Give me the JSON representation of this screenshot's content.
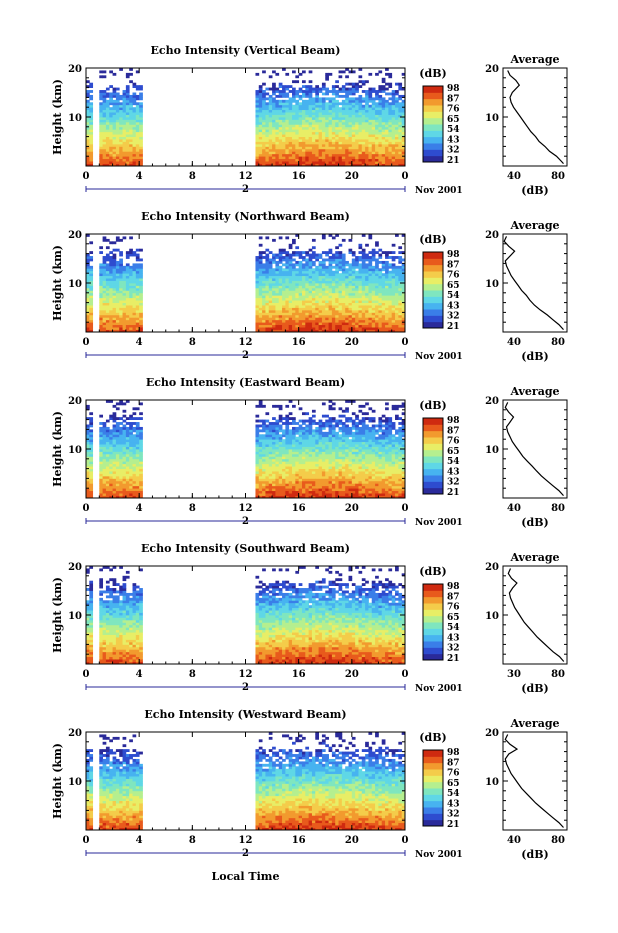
{
  "colors": {
    "colormap": [
      "#2a2a9a",
      "#2e4ccf",
      "#3a7ee8",
      "#47b3f0",
      "#5fd7e6",
      "#7fe6bf",
      "#b5ef8f",
      "#e8ee66",
      "#f4cc4a",
      "#f29a2e",
      "#e85a1c",
      "#cf2a10"
    ],
    "axis": "#000000",
    "time_marker": "#2a2a9a"
  },
  "shared": {
    "colorbar_unit": "(dB)",
    "colorbar_ticks": [
      "98",
      "87",
      "76",
      "65",
      "54",
      "43",
      "32",
      "21"
    ],
    "x_tick_labels": [
      "0",
      "4",
      "8",
      "12",
      "16",
      "20",
      "0"
    ],
    "day_label": "2",
    "month_label": "Nov 2001",
    "y_label": "Height (km)",
    "y_tick_labels": [
      "20",
      "10"
    ],
    "avg_title": "Average",
    "avg_xlabel": "(dB)",
    "x_axis_label": "Local Time"
  },
  "chart_data": [
    {
      "type": "heatmap",
      "title": "Echo Intensity (Vertical Beam)",
      "xlabel": "",
      "ylabel": "Height (km)",
      "xlim": [
        0,
        24
      ],
      "ylim": [
        0,
        20
      ],
      "data_gaps_hours": [
        [
          4.2,
          12.7
        ]
      ],
      "colorbar": {
        "unit": "dB",
        "ticks": [
          21,
          32,
          43,
          54,
          65,
          76,
          87,
          98
        ]
      },
      "profile": {
        "title": "Average",
        "xlabel": "(dB)",
        "xticks": [
          "40",
          "80"
        ],
        "yticks": [
          "20",
          "10"
        ],
        "xlim": [
          30,
          85
        ],
        "points": [
          [
            82,
            0.5
          ],
          [
            80,
            1
          ],
          [
            76,
            2
          ],
          [
            70,
            3
          ],
          [
            66,
            4
          ],
          [
            61,
            5
          ],
          [
            58,
            6
          ],
          [
            54,
            7
          ],
          [
            51,
            8
          ],
          [
            48,
            9
          ],
          [
            45,
            10
          ],
          [
            42,
            11
          ],
          [
            39,
            12
          ],
          [
            37,
            13
          ],
          [
            36,
            14
          ],
          [
            38,
            15
          ],
          [
            44,
            16.5
          ],
          [
            41,
            17.5
          ],
          [
            36,
            18.5
          ],
          [
            34,
            19.5
          ]
        ]
      }
    },
    {
      "type": "heatmap",
      "title": "Echo Intensity (Northward Beam)",
      "xlabel": "",
      "ylabel": "Height (km)",
      "xlim": [
        0,
        24
      ],
      "ylim": [
        0,
        20
      ],
      "data_gaps_hours": [
        [
          4.2,
          12.7
        ]
      ],
      "colorbar": {
        "unit": "dB",
        "ticks": [
          21,
          32,
          43,
          54,
          65,
          76,
          87,
          98
        ]
      },
      "profile": {
        "title": "Average",
        "xlabel": "(dB)",
        "xticks": [
          "40",
          "80"
        ],
        "yticks": [
          "20",
          "10"
        ],
        "xlim": [
          30,
          85
        ],
        "points": [
          [
            82,
            0.5
          ],
          [
            78,
            1.5
          ],
          [
            73,
            2.5
          ],
          [
            68,
            3.5
          ],
          [
            62,
            4.5
          ],
          [
            57,
            5.5
          ],
          [
            53,
            6.5
          ],
          [
            50,
            7.5
          ],
          [
            46,
            8.5
          ],
          [
            43,
            9.5
          ],
          [
            40,
            10.5
          ],
          [
            37,
            11.5
          ],
          [
            35,
            12.5
          ],
          [
            33,
            13.5
          ],
          [
            32,
            14.5
          ],
          [
            36,
            15.5
          ],
          [
            40,
            16.5
          ],
          [
            35,
            17.5
          ],
          [
            31,
            18.5
          ],
          [
            33,
            19.5
          ]
        ]
      }
    },
    {
      "type": "heatmap",
      "title": "Echo Intensity (Eastward Beam)",
      "xlabel": "",
      "ylabel": "Height (km)",
      "xlim": [
        0,
        24
      ],
      "ylim": [
        0,
        20
      ],
      "data_gaps_hours": [
        [
          4.2,
          12.7
        ]
      ],
      "colorbar": {
        "unit": "dB",
        "ticks": [
          21,
          32,
          43,
          54,
          65,
          76,
          87,
          98
        ]
      },
      "profile": {
        "title": "Average",
        "xlabel": "(dB)",
        "xticks": [
          "40",
          "80"
        ],
        "yticks": [
          "20",
          "10"
        ],
        "xlim": [
          30,
          85
        ],
        "points": [
          [
            82,
            0.5
          ],
          [
            78,
            1.5
          ],
          [
            73,
            2.5
          ],
          [
            68,
            3.5
          ],
          [
            63,
            4.5
          ],
          [
            59,
            5.5
          ],
          [
            55,
            6.5
          ],
          [
            51,
            7.5
          ],
          [
            47,
            8.5
          ],
          [
            44,
            9.5
          ],
          [
            41,
            10.5
          ],
          [
            38,
            11.5
          ],
          [
            36,
            12.5
          ],
          [
            34,
            13.5
          ],
          [
            33,
            14.5
          ],
          [
            36,
            15.5
          ],
          [
            39,
            16.5
          ],
          [
            35,
            17.5
          ],
          [
            32,
            18.5
          ],
          [
            34,
            19.5
          ]
        ]
      }
    },
    {
      "type": "heatmap",
      "title": "Echo Intensity (Southward Beam)",
      "xlabel": "",
      "ylabel": "Height (km)",
      "xlim": [
        0,
        24
      ],
      "ylim": [
        0,
        20
      ],
      "data_gaps_hours": [
        [
          4.2,
          12.7
        ]
      ],
      "colorbar": {
        "unit": "dB",
        "ticks": [
          21,
          32,
          43,
          54,
          65,
          76,
          87,
          98
        ]
      },
      "profile": {
        "title": "Average",
        "xlabel": "(dB)",
        "xticks": [
          "30",
          "80"
        ],
        "yticks": [
          "20",
          "10"
        ],
        "xlim": [
          25,
          85
        ],
        "points": [
          [
            82,
            0.5
          ],
          [
            78,
            1.5
          ],
          [
            72,
            2.5
          ],
          [
            67,
            3.5
          ],
          [
            62,
            4.5
          ],
          [
            57,
            5.5
          ],
          [
            53,
            6.5
          ],
          [
            49,
            7.5
          ],
          [
            45,
            8.5
          ],
          [
            42,
            9.5
          ],
          [
            39,
            10.5
          ],
          [
            36,
            11.5
          ],
          [
            34,
            12.5
          ],
          [
            32,
            13.5
          ],
          [
            31,
            14.5
          ],
          [
            34,
            15.5
          ],
          [
            38,
            16.5
          ],
          [
            33,
            17.5
          ],
          [
            30,
            18.5
          ],
          [
            32,
            19.5
          ]
        ]
      }
    },
    {
      "type": "heatmap",
      "title": "Echo Intensity (Westward Beam)",
      "xlabel": "Local Time",
      "ylabel": "Height (km)",
      "xlim": [
        0,
        24
      ],
      "ylim": [
        0,
        20
      ],
      "data_gaps_hours": [
        [
          4.2,
          12.7
        ]
      ],
      "colorbar": {
        "unit": "dB",
        "ticks": [
          21,
          32,
          43,
          54,
          65,
          76,
          87,
          98
        ]
      },
      "profile": {
        "title": "Average",
        "xlabel": "(dB)",
        "xticks": [
          "40",
          "80"
        ],
        "yticks": [
          "20",
          "10"
        ],
        "xlim": [
          30,
          85
        ],
        "points": [
          [
            82,
            0.5
          ],
          [
            78,
            1.5
          ],
          [
            73,
            2.5
          ],
          [
            68,
            3.5
          ],
          [
            63,
            4.5
          ],
          [
            58,
            5.5
          ],
          [
            54,
            6.5
          ],
          [
            50,
            7.5
          ],
          [
            46,
            8.5
          ],
          [
            43,
            9.5
          ],
          [
            40,
            10.5
          ],
          [
            37,
            11.5
          ],
          [
            35,
            12.5
          ],
          [
            33,
            13.5
          ],
          [
            32,
            14.5
          ],
          [
            35,
            15.5
          ],
          [
            42,
            16.5
          ],
          [
            36,
            17.5
          ],
          [
            32,
            18.5
          ],
          [
            34,
            19.5
          ]
        ]
      }
    }
  ]
}
